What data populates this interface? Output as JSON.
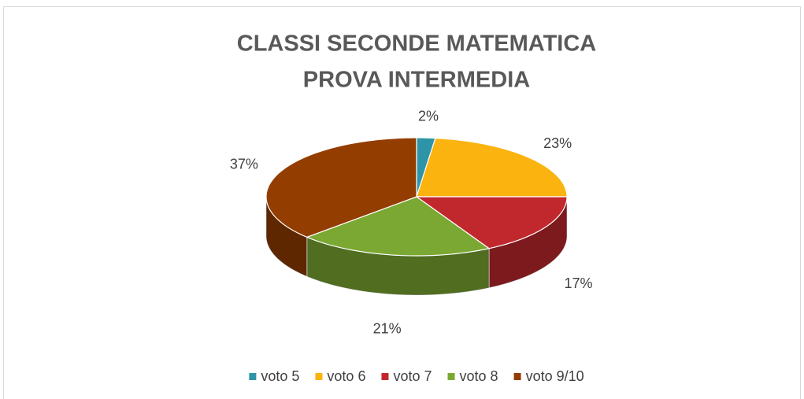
{
  "chart_data": {
    "type": "pie",
    "title": [
      "CLASSI SECONDE MATEMATICA",
      "PROVA INTERMEDIA"
    ],
    "categories": [
      "voto 5",
      "voto 6",
      "voto 7",
      "voto 8",
      "voto 9/10"
    ],
    "values": [
      2,
      23,
      17,
      21,
      37
    ],
    "value_labels": [
      "2%",
      "23%",
      "17%",
      "21%",
      "37%"
    ],
    "colors": [
      "#2e95a8",
      "#fbb30f",
      "#c1282e",
      "#7ba832",
      "#933d00"
    ],
    "legend": "bottom"
  }
}
